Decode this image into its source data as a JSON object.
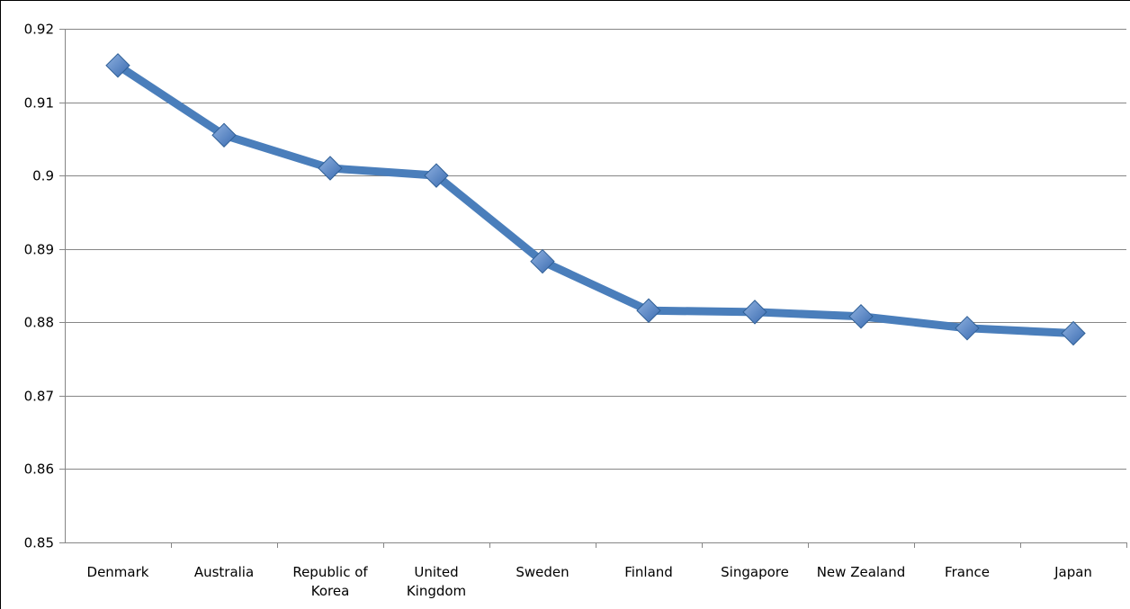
{
  "chart_data": {
    "type": "line",
    "title": "",
    "xlabel": "",
    "ylabel": "",
    "categories": [
      [
        "Denmark"
      ],
      [
        "Australia"
      ],
      [
        "Republic of",
        "Korea"
      ],
      [
        "United",
        "Kingdom"
      ],
      [
        "Sweden"
      ],
      [
        "Finland"
      ],
      [
        "Singapore"
      ],
      [
        "New Zealand"
      ],
      [
        "France"
      ],
      [
        "Japan"
      ]
    ],
    "series": [
      {
        "values": [
          0.915,
          0.9055,
          0.901,
          0.9,
          0.8883,
          0.8816,
          0.8814,
          0.8808,
          0.8792,
          0.8785
        ]
      }
    ],
    "ylim": [
      0.85,
      0.92
    ],
    "yticks": [
      {
        "value": 0.85,
        "label": "0.85"
      },
      {
        "value": 0.86,
        "label": "0.86"
      },
      {
        "value": 0.87,
        "label": "0.87"
      },
      {
        "value": 0.88,
        "label": "0.88"
      },
      {
        "value": 0.89,
        "label": "0.89"
      },
      {
        "value": 0.9,
        "label": "0.9"
      },
      {
        "value": 0.91,
        "label": "0.91"
      },
      {
        "value": 0.92,
        "label": "0.92"
      }
    ],
    "grid": true,
    "legend": "none",
    "colors": {
      "line": "#4a7ebb",
      "marker_light": "#8fb1e0",
      "marker_dark": "#3a6bb0",
      "grid": "#868686"
    }
  }
}
